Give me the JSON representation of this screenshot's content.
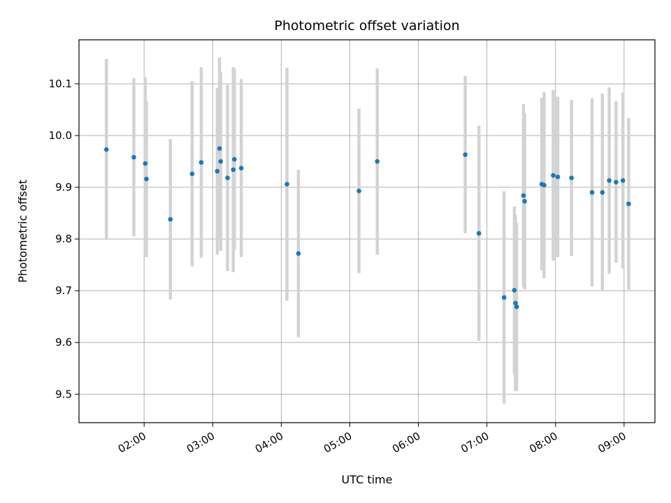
{
  "chart_data": {
    "type": "scatter",
    "title": "Photometric offset variation",
    "xlabel": "UTC time",
    "ylabel": "Photometric offset",
    "grid": true,
    "xlim": [
      "01:03",
      "09:27"
    ],
    "ylim": [
      9.445,
      10.185
    ],
    "x_ticks": [
      "02:00",
      "03:00",
      "04:00",
      "05:00",
      "06:00",
      "07:00",
      "08:00",
      "09:00"
    ],
    "y_ticks": [
      9.5,
      9.6,
      9.7,
      9.8,
      9.9,
      10.0,
      10.1
    ],
    "y_tick_labels": [
      "9.5",
      "9.6",
      "9.7",
      "9.8",
      "9.9",
      "10.0",
      "10.1"
    ],
    "colors": {
      "marker": "#1f77b4",
      "errorbar": "#d3d3d3",
      "grid": "#b0b0b0"
    },
    "points": [
      {
        "x": "01:27",
        "y": 9.973,
        "err": 0.175
      },
      {
        "x": "01:51",
        "y": 9.958,
        "err": 0.153
      },
      {
        "x": "02:01",
        "y": 9.946,
        "err": 0.167
      },
      {
        "x": "02:02",
        "y": 9.916,
        "err": 0.151
      },
      {
        "x": "02:23",
        "y": 9.838,
        "err": 0.155
      },
      {
        "x": "02:42",
        "y": 9.926,
        "err": 0.179
      },
      {
        "x": "02:50",
        "y": 9.948,
        "err": 0.184
      },
      {
        "x": "03:04",
        "y": 9.931,
        "err": 0.161
      },
      {
        "x": "03:06",
        "y": 9.975,
        "err": 0.176
      },
      {
        "x": "03:07",
        "y": 9.95,
        "err": 0.173
      },
      {
        "x": "03:13",
        "y": 9.918,
        "err": 0.18
      },
      {
        "x": "03:18",
        "y": 9.934,
        "err": 0.198
      },
      {
        "x": "03:19",
        "y": 9.954,
        "err": 0.175
      },
      {
        "x": "03:25",
        "y": 9.937,
        "err": 0.172
      },
      {
        "x": "04:05",
        "y": 9.906,
        "err": 0.225
      },
      {
        "x": "04:15",
        "y": 9.772,
        "err": 0.162
      },
      {
        "x": "05:08",
        "y": 9.893,
        "err": 0.159
      },
      {
        "x": "05:24",
        "y": 9.95,
        "err": 0.18
      },
      {
        "x": "06:41",
        "y": 9.963,
        "err": 0.152
      },
      {
        "x": "06:53",
        "y": 9.811,
        "err": 0.208
      },
      {
        "x": "07:15",
        "y": 9.687,
        "err": 0.205
      },
      {
        "x": "07:24",
        "y": 9.701,
        "err": 0.162
      },
      {
        "x": "07:25",
        "y": 9.676,
        "err": 0.17
      },
      {
        "x": "07:26",
        "y": 9.669,
        "err": 0.162
      },
      {
        "x": "07:32",
        "y": 9.884,
        "err": 0.177
      },
      {
        "x": "07:33",
        "y": 9.873,
        "err": 0.17
      },
      {
        "x": "07:48",
        "y": 9.906,
        "err": 0.167
      },
      {
        "x": "07:50",
        "y": 9.904,
        "err": 0.18
      },
      {
        "x": "07:58",
        "y": 9.923,
        "err": 0.165
      },
      {
        "x": "08:02",
        "y": 9.92,
        "err": 0.155
      },
      {
        "x": "08:14",
        "y": 9.918,
        "err": 0.151
      },
      {
        "x": "08:32",
        "y": 9.89,
        "err": 0.182
      },
      {
        "x": "08:41",
        "y": 9.89,
        "err": 0.191
      },
      {
        "x": "08:47",
        "y": 9.913,
        "err": 0.18
      },
      {
        "x": "08:53",
        "y": 9.91,
        "err": 0.156
      },
      {
        "x": "08:59",
        "y": 9.913,
        "err": 0.17
      },
      {
        "x": "09:04",
        "y": 9.868,
        "err": 0.166
      }
    ]
  }
}
